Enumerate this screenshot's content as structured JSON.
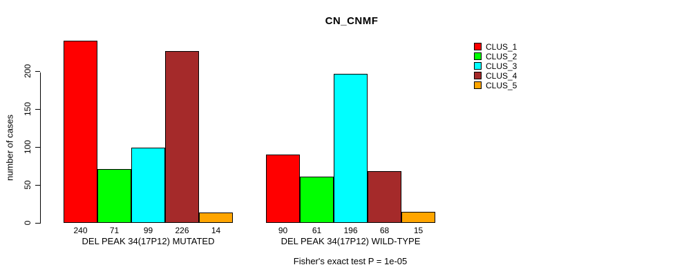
{
  "title": "CN_CNMF",
  "subtitle": "Fisher's exact test P = 1e-05",
  "y_axis": {
    "label": "number of cases",
    "ticks": [
      "0",
      "50",
      "100",
      "150",
      "200"
    ]
  },
  "legend": {
    "items": [
      {
        "label": "CLUS_1",
        "color": "#FF0000"
      },
      {
        "label": "CLUS_2",
        "color": "#00FF00"
      },
      {
        "label": "CLUS_3",
        "color": "#00FFFF"
      },
      {
        "label": "CLUS_4",
        "color": "#A52A2A"
      },
      {
        "label": "CLUS_5",
        "color": "#FFA500"
      }
    ]
  },
  "chart_data": {
    "type": "bar",
    "title": "CN_CNMF",
    "xlabel": "",
    "ylabel": "number of cases",
    "ylim": [
      0,
      245
    ],
    "yticks": [
      0,
      50,
      100,
      150,
      200
    ],
    "grid": false,
    "legend_position": "right",
    "series_names": [
      "CLUS_1",
      "CLUS_2",
      "CLUS_3",
      "CLUS_4",
      "CLUS_5"
    ],
    "series_colors": [
      "#FF0000",
      "#00FF00",
      "#00FFFF",
      "#A52A2A",
      "#FFA500"
    ],
    "groups": [
      {
        "label": "DEL PEAK 34(17P12) MUTATED",
        "values": [
          240,
          71,
          99,
          226,
          14
        ]
      },
      {
        "label": "DEL PEAK 34(17P12) WILD-TYPE",
        "values": [
          90,
          61,
          196,
          68,
          15
        ]
      }
    ],
    "annotation": "Fisher's exact test P = 1e-05"
  }
}
